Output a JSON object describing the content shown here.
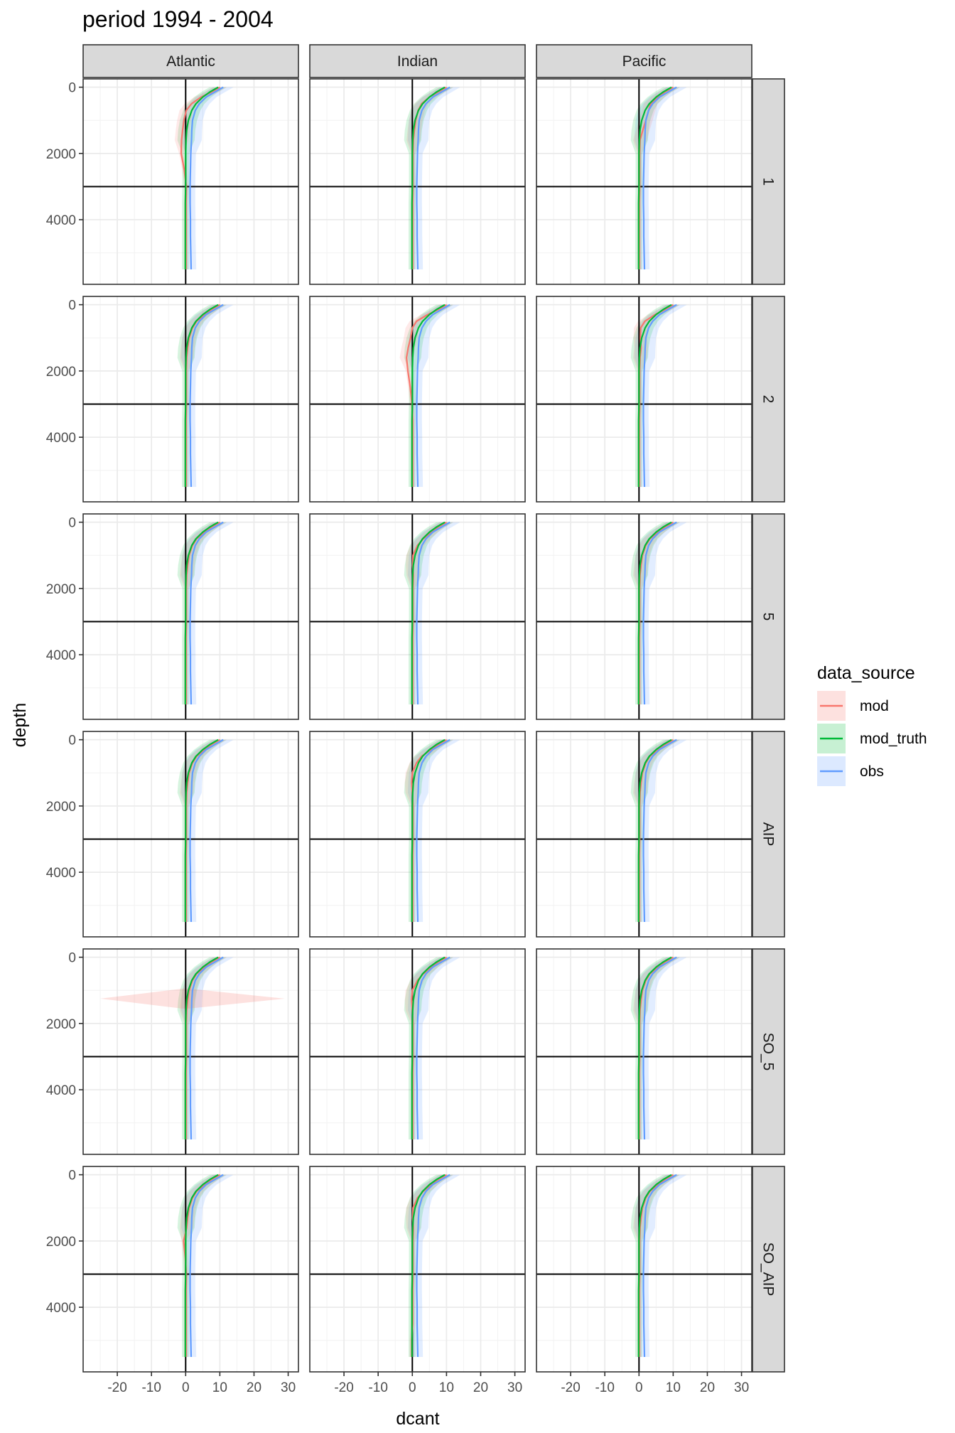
{
  "chart_data": {
    "type": "line",
    "title": "period 1994 - 2004",
    "xlabel": "dcant",
    "ylabel": "depth",
    "xlim": [
      -30,
      33
    ],
    "ylim": [
      5950,
      -250
    ],
    "x_ticks": [
      -20,
      -10,
      0,
      10,
      20,
      30
    ],
    "y_ticks": [
      0,
      2000,
      4000
    ],
    "y_reversed": true,
    "grid": true,
    "reference_lines": {
      "vertical_x": 0,
      "horizontal_depth": 3000
    },
    "columns": [
      "Atlantic",
      "Indian",
      "Pacific"
    ],
    "rows": [
      "1",
      "2",
      "5",
      "AIP",
      "SO_5",
      "SO_AIP"
    ],
    "legend": {
      "title": "data_source",
      "position": "right",
      "entries": [
        {
          "name": "mod",
          "color": "#F8766D"
        },
        {
          "name": "mod_truth",
          "color": "#00BA38"
        },
        {
          "name": "obs",
          "color": "#619CFF"
        }
      ]
    },
    "depth_levels": [
      0,
      150,
      300,
      500,
      700,
      1000,
      1300,
      1600,
      2000,
      2500,
      3000,
      3500,
      4000,
      4500,
      5000,
      5500
    ],
    "series_shape": {
      "mod_truth": [
        9.5,
        7.0,
        5.0,
        3.0,
        1.8,
        0.8,
        0.3,
        0.1,
        0.0,
        0.0,
        0.0,
        -0.1,
        -0.1,
        -0.1,
        -0.1,
        -0.1
      ],
      "obs": [
        11.0,
        8.5,
        6.0,
        4.0,
        2.8,
        2.0,
        1.8,
        1.7,
        1.5,
        1.4,
        1.3,
        1.3,
        1.4,
        1.4,
        1.5,
        1.6
      ],
      "mod": [
        10.0,
        7.5,
        5.5,
        3.2,
        2.0,
        1.0,
        0.6,
        0.3,
        0.2,
        0.2,
        0.2,
        0.1,
        0.1,
        0.1,
        0.1,
        0.1
      ]
    },
    "panels": [
      {
        "row": "1",
        "col": "Atlantic",
        "mod_offset": [
          0,
          0,
          -1.0,
          -1.5,
          -1.8,
          -1.5,
          -1.5,
          -1.5,
          -1.5,
          -0.6,
          0,
          0,
          0,
          0,
          0,
          0
        ]
      },
      {
        "row": "1",
        "col": "Indian",
        "mod_offset": [
          0,
          0,
          -0.5,
          -0.5,
          -0.3,
          0,
          0,
          0,
          0,
          0,
          0,
          0,
          0,
          0,
          0,
          0
        ]
      },
      {
        "row": "1",
        "col": "Pacific",
        "mod_offset": [
          0,
          0,
          0,
          0.2,
          0.8,
          1.0,
          0.5,
          0,
          0,
          0,
          0,
          0,
          0,
          0,
          0,
          0
        ]
      },
      {
        "row": "2",
        "col": "Atlantic",
        "mod_offset": [
          0,
          0,
          0,
          0,
          0,
          0,
          0,
          0,
          0,
          0,
          0,
          0,
          0,
          0,
          0,
          0
        ]
      },
      {
        "row": "2",
        "col": "Indian",
        "mod_offset": [
          0,
          0,
          -1.0,
          -2.0,
          -2.0,
          -1.5,
          -1.8,
          -2.0,
          -1.5,
          -0.8,
          -0.3,
          0,
          0,
          0,
          0,
          0
        ]
      },
      {
        "row": "2",
        "col": "Pacific",
        "mod_offset": [
          0,
          0,
          -0.8,
          -1.5,
          -1.5,
          -0.6,
          0,
          0,
          0,
          0,
          0,
          0,
          0,
          0,
          0,
          0
        ]
      },
      {
        "row": "5",
        "col": "Atlantic",
        "mod_offset": [
          0,
          0,
          0,
          0,
          0,
          0,
          0,
          0,
          0,
          0,
          0,
          0,
          0,
          0,
          0,
          0
        ]
      },
      {
        "row": "5",
        "col": "Indian",
        "mod_offset": [
          0,
          0,
          0,
          0,
          -0.5,
          -0.8,
          -0.5,
          0,
          0,
          0,
          0,
          0,
          0,
          0,
          0,
          0
        ]
      },
      {
        "row": "5",
        "col": "Pacific",
        "mod_offset": [
          0,
          0,
          0,
          0,
          0,
          0,
          0,
          0,
          0,
          0,
          0,
          0,
          0,
          0,
          0,
          0
        ]
      },
      {
        "row": "AIP",
        "col": "Atlantic",
        "mod_offset": [
          0,
          0,
          0,
          0,
          0,
          0,
          0,
          0,
          0,
          0,
          0,
          0,
          0,
          0,
          0,
          0
        ]
      },
      {
        "row": "AIP",
        "col": "Indian",
        "mod_offset": [
          0,
          0,
          0,
          -0.5,
          -0.8,
          -1.0,
          -0.8,
          -0.3,
          0,
          0,
          0,
          0,
          0,
          0,
          0,
          0
        ]
      },
      {
        "row": "AIP",
        "col": "Pacific",
        "mod_offset": [
          0,
          0,
          0,
          0,
          0,
          0,
          0,
          0,
          0,
          0,
          0,
          0,
          0,
          0,
          0,
          0
        ]
      },
      {
        "row": "SO_5",
        "col": "Atlantic",
        "mod_offset": [
          0,
          0,
          0,
          0,
          0,
          0,
          0,
          0,
          0,
          0,
          0,
          0,
          0,
          0,
          0,
          0
        ],
        "mod_band_spike": {
          "depth": 1250,
          "xmin": -25,
          "xmax": 29
        }
      },
      {
        "row": "SO_5",
        "col": "Indian",
        "mod_offset": [
          0,
          0,
          0,
          0,
          -0.5,
          -1.0,
          -0.8,
          -0.3,
          0,
          0,
          0,
          0,
          0,
          0,
          0,
          0
        ]
      },
      {
        "row": "SO_5",
        "col": "Pacific",
        "mod_offset": [
          0,
          0,
          0,
          0,
          0,
          0,
          0,
          0,
          0,
          0,
          0,
          0,
          0,
          0,
          0,
          0
        ]
      },
      {
        "row": "SO_AIP",
        "col": "Atlantic",
        "mod_offset": [
          0,
          0,
          0,
          0,
          0,
          0,
          0,
          0,
          -0.8,
          -0.3,
          0,
          0,
          0,
          0,
          0,
          0
        ]
      },
      {
        "row": "SO_AIP",
        "col": "Indian",
        "mod_offset": [
          0,
          0,
          0,
          0,
          -0.5,
          -0.8,
          -0.5,
          0,
          0,
          0,
          0,
          0,
          0,
          0,
          -0.3,
          -0.3
        ]
      },
      {
        "row": "SO_AIP",
        "col": "Pacific",
        "mod_offset": [
          0,
          0,
          0,
          0,
          0,
          0,
          0,
          0,
          0,
          0,
          0,
          0,
          0,
          0,
          0,
          0
        ]
      }
    ]
  }
}
